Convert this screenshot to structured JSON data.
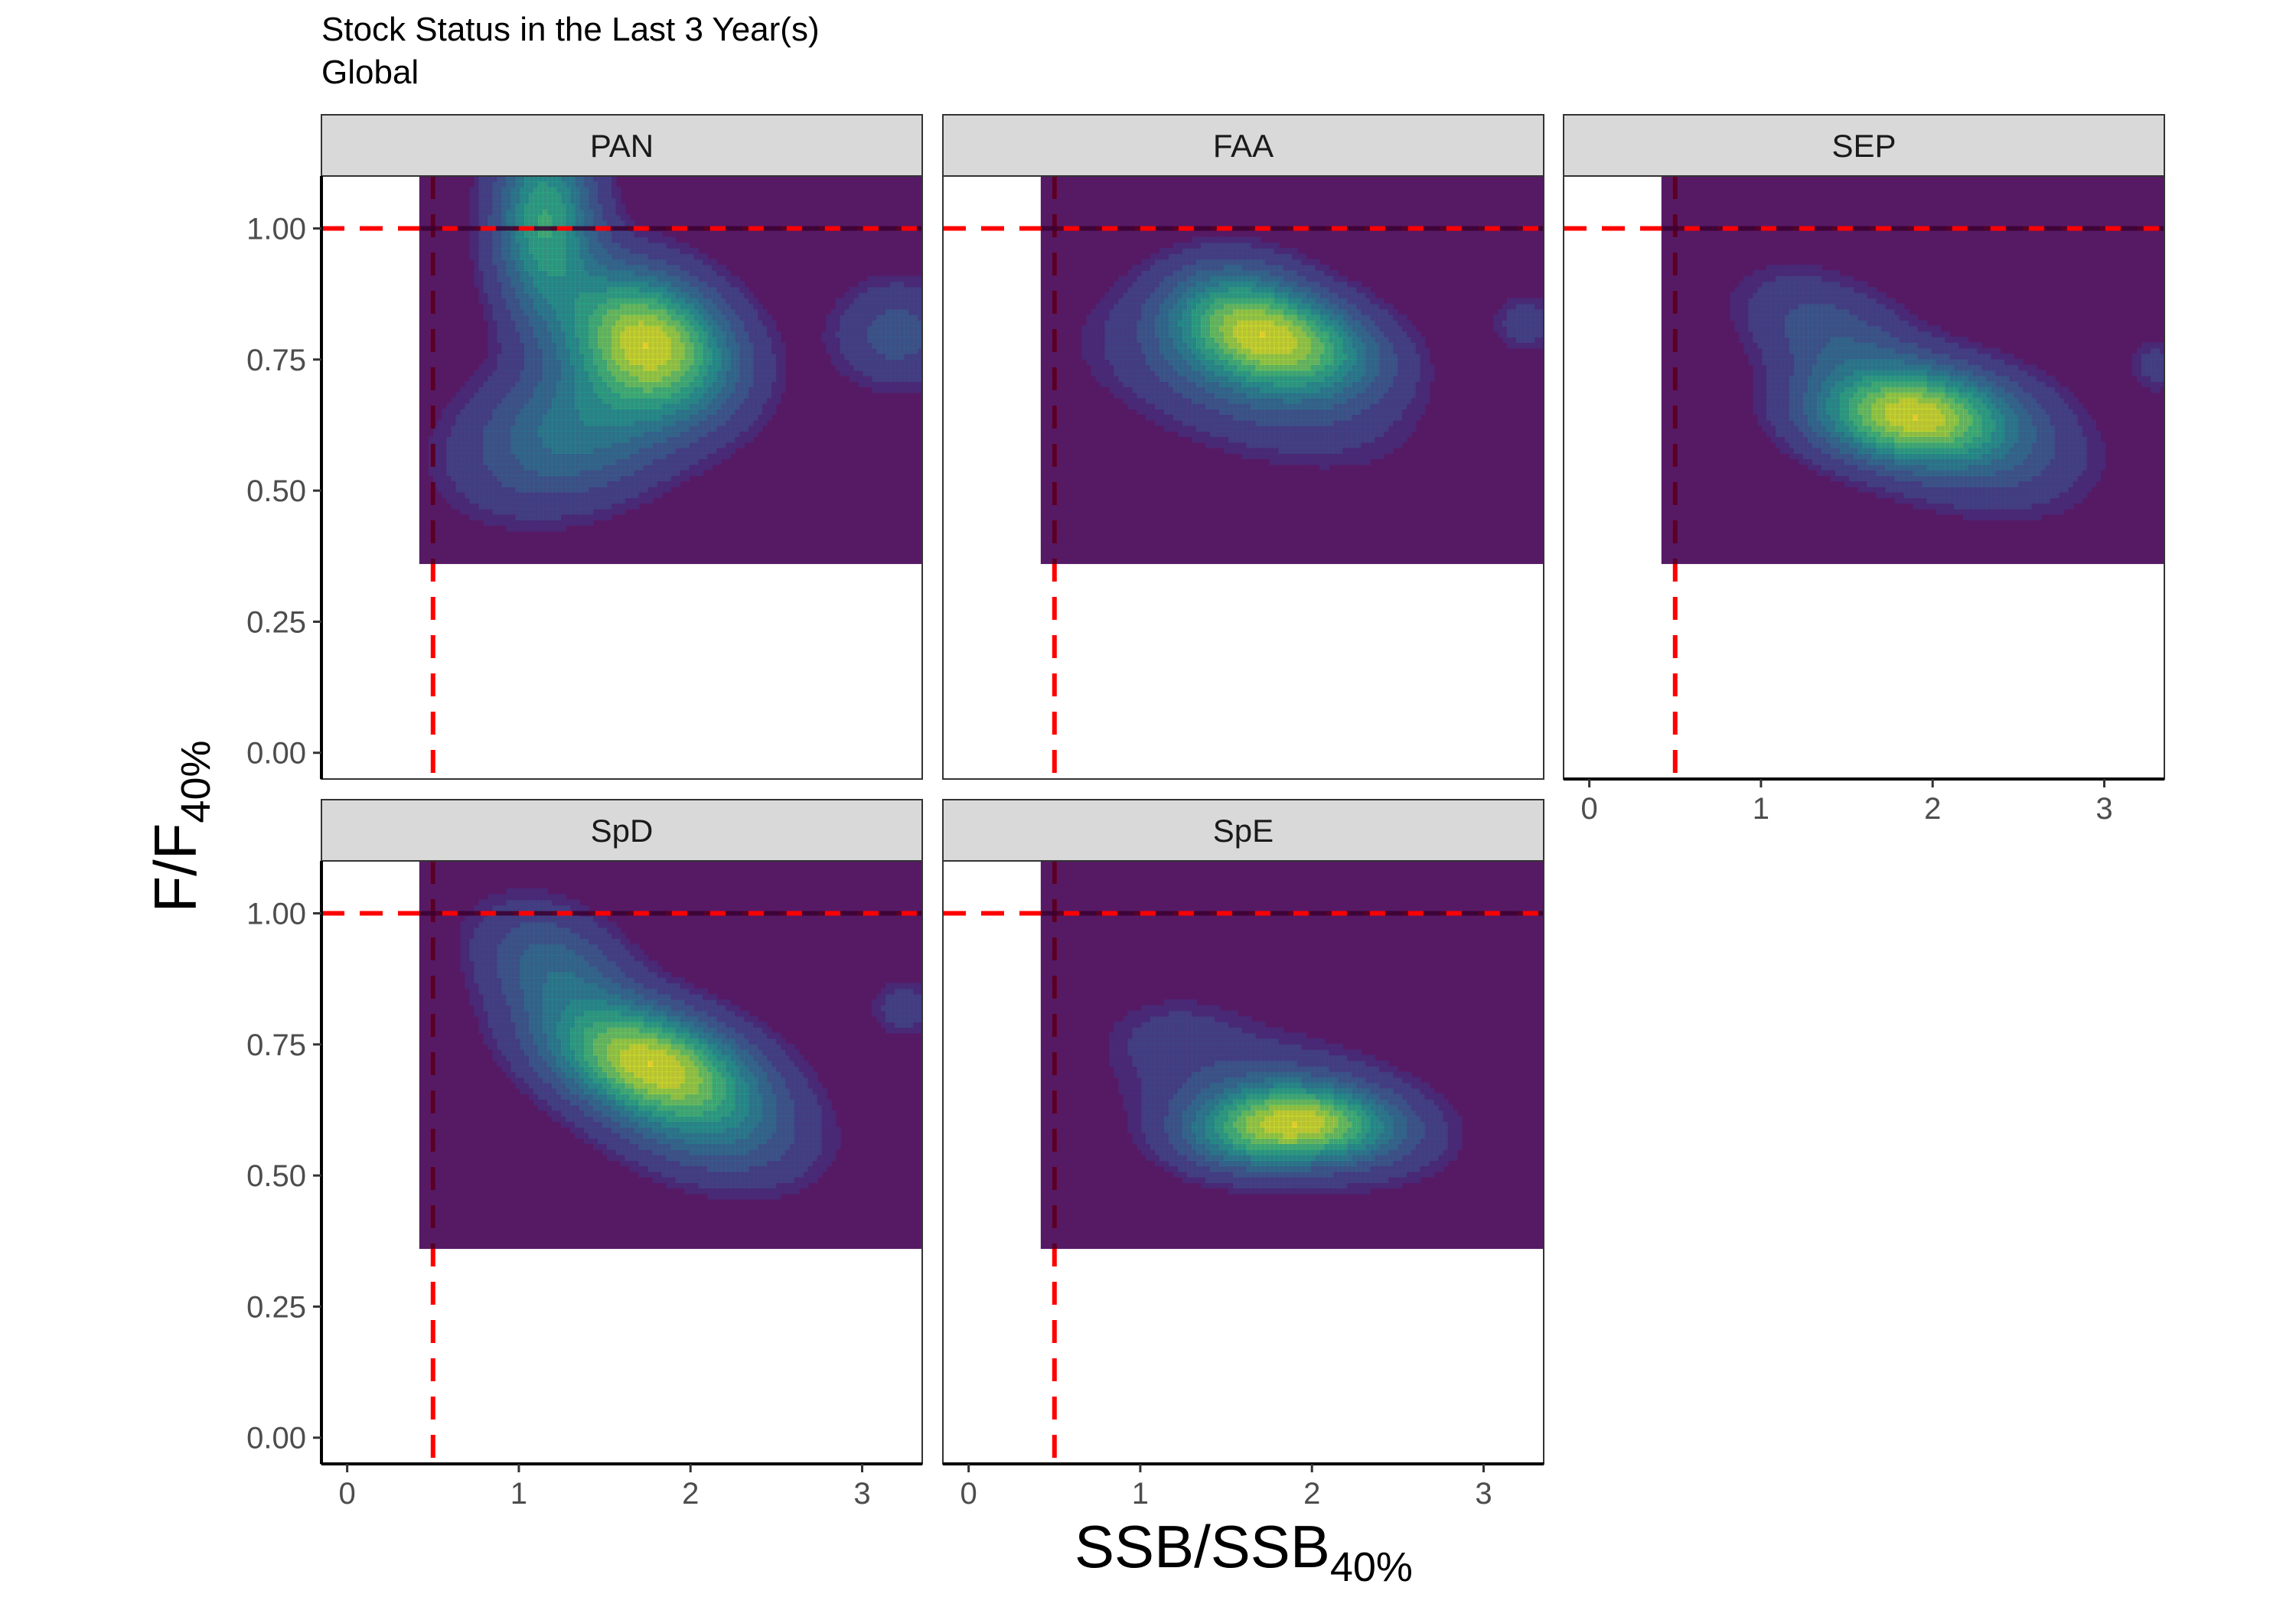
{
  "figure": {
    "title": "Stock Status in the Last 3 Year(s)",
    "subtitle": "Global",
    "xlabel_main": "SSB/SSB",
    "xlabel_sub": "40%",
    "ylabel_main": "F/F",
    "ylabel_sub": "40%"
  },
  "colors": {
    "fill_background": "#440154",
    "reference_line": "#ff0000",
    "strip_background": "#d9d9d9",
    "viridis": [
      "#440154",
      "#482878",
      "#3e4a89",
      "#31688e",
      "#26828e",
      "#1f9e89",
      "#35b779",
      "#6ece58",
      "#b5de2b",
      "#fde725"
    ]
  },
  "chart_data": {
    "type": "density2d",
    "xlim": [
      -0.15,
      3.35
    ],
    "ylim": [
      -0.05,
      1.1
    ],
    "x_ticks": [
      0,
      1,
      2,
      3
    ],
    "x_tick_labels": [
      "0",
      "1",
      "2",
      "3"
    ],
    "y_ticks": [
      0,
      0.25,
      0.5,
      0.75,
      1
    ],
    "y_tick_labels": [
      "0.00",
      "0.25",
      "0.50",
      "0.75",
      "1.00"
    ],
    "reference_lines": {
      "x": 0.5,
      "y": 1.0
    },
    "density_region": {
      "x": [
        0.42,
        3.35
      ],
      "y": [
        0.36,
        1.1
      ]
    },
    "panels": [
      {
        "name": "PAN",
        "show_x_axis": false,
        "show_y_axis": true,
        "components": [
          {
            "x": 1.75,
            "y": 0.79,
            "sx": 0.33,
            "sy": 0.09,
            "rho": -0.25,
            "w": 1.0
          },
          {
            "x": 1.15,
            "y": 1.02,
            "sx": 0.2,
            "sy": 0.12,
            "rho": 0.0,
            "w": 0.7
          },
          {
            "x": 1.35,
            "y": 0.62,
            "sx": 0.45,
            "sy": 0.1,
            "rho": 0.3,
            "w": 0.45
          },
          {
            "x": 3.2,
            "y": 0.8,
            "sx": 0.25,
            "sy": 0.07,
            "rho": 0.0,
            "w": 0.25
          }
        ]
      },
      {
        "name": "FAA",
        "show_x_axis": false,
        "show_y_axis": false,
        "components": [
          {
            "x": 1.9,
            "y": 0.775,
            "sx": 0.35,
            "sy": 0.065,
            "rho": -0.2,
            "w": 1.0
          },
          {
            "x": 1.55,
            "y": 0.84,
            "sx": 0.3,
            "sy": 0.07,
            "rho": -0.1,
            "w": 0.75
          },
          {
            "x": 1.6,
            "y": 0.7,
            "sx": 0.6,
            "sy": 0.1,
            "rho": -0.5,
            "w": 0.3
          },
          {
            "x": 3.25,
            "y": 0.82,
            "sx": 0.15,
            "sy": 0.04,
            "rho": 0.0,
            "w": 0.2
          }
        ]
      },
      {
        "name": "SEP",
        "show_x_axis": true,
        "show_y_axis": false,
        "components": [
          {
            "x": 1.85,
            "y": 0.645,
            "sx": 0.38,
            "sy": 0.06,
            "rho": -0.1,
            "w": 1.0
          },
          {
            "x": 1.4,
            "y": 0.8,
            "sx": 0.35,
            "sy": 0.08,
            "rho": -0.4,
            "w": 0.3
          },
          {
            "x": 2.2,
            "y": 0.6,
            "sx": 0.45,
            "sy": 0.09,
            "rho": -0.3,
            "w": 0.35
          },
          {
            "x": 3.3,
            "y": 0.74,
            "sx": 0.12,
            "sy": 0.04,
            "rho": 0.0,
            "w": 0.15
          }
        ]
      },
      {
        "name": "SpD",
        "show_x_axis": true,
        "show_y_axis": true,
        "components": [
          {
            "x": 1.75,
            "y": 0.72,
            "sx": 0.4,
            "sy": 0.075,
            "rho": -0.35,
            "w": 1.0
          },
          {
            "x": 1.2,
            "y": 0.9,
            "sx": 0.3,
            "sy": 0.08,
            "rho": -0.3,
            "w": 0.35
          },
          {
            "x": 2.1,
            "y": 0.6,
            "sx": 0.4,
            "sy": 0.08,
            "rho": -0.3,
            "w": 0.35
          },
          {
            "x": 3.25,
            "y": 0.82,
            "sx": 0.15,
            "sy": 0.04,
            "rho": 0.0,
            "w": 0.15
          }
        ]
      },
      {
        "name": "SpE",
        "show_x_axis": true,
        "show_y_axis": false,
        "components": [
          {
            "x": 2.05,
            "y": 0.605,
            "sx": 0.33,
            "sy": 0.05,
            "rho": -0.2,
            "w": 1.0
          },
          {
            "x": 1.65,
            "y": 0.58,
            "sx": 0.3,
            "sy": 0.05,
            "rho": 0.0,
            "w": 0.8
          },
          {
            "x": 1.8,
            "y": 0.64,
            "sx": 0.6,
            "sy": 0.1,
            "rho": -0.4,
            "w": 0.3
          },
          {
            "x": 1.2,
            "y": 0.77,
            "sx": 0.25,
            "sy": 0.05,
            "rho": 0.0,
            "w": 0.12
          }
        ]
      }
    ]
  }
}
